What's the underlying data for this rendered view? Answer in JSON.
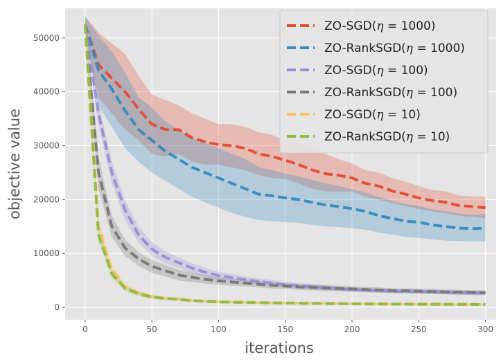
{
  "chart_data": {
    "type": "line",
    "title": "",
    "xlabel": "iterations",
    "ylabel": "objective value",
    "xlim": [
      -15,
      308
    ],
    "ylim": [
      -2300,
      55500
    ],
    "xticks": [
      0,
      50,
      100,
      150,
      200,
      250,
      300
    ],
    "yticks": [
      0,
      10000,
      20000,
      30000,
      40000,
      50000
    ],
    "grid": true,
    "legend_position": "top-right",
    "x": [
      0,
      10,
      20,
      30,
      40,
      50,
      60,
      70,
      80,
      90,
      100,
      110,
      120,
      130,
      140,
      150,
      160,
      170,
      180,
      190,
      200,
      210,
      220,
      230,
      240,
      250,
      260,
      270,
      280,
      290,
      300
    ],
    "series": [
      {
        "name": "ZO-SGD(η = 1000)",
        "label_main": "ZO-SGD(",
        "label_sym": "η",
        "label_rest": " = 1000)",
        "color": "#E24A33",
        "values": [
          52500,
          45000,
          42500,
          40000,
          36800,
          34000,
          33000,
          33000,
          31500,
          30700,
          30200,
          30000,
          29500,
          28500,
          28000,
          27300,
          26500,
          25500,
          24800,
          24500,
          24000,
          23000,
          22500,
          21600,
          21000,
          20300,
          19800,
          19500,
          18900,
          18700,
          18500
        ],
        "lower": [
          51000,
          39000,
          36000,
          33000,
          31000,
          28500,
          28000,
          28500,
          27000,
          26500,
          26500,
          26000,
          25500,
          24500,
          24000,
          23800,
          23000,
          22000,
          21500,
          21500,
          21500,
          20500,
          20000,
          19300,
          18800,
          18200,
          17800,
          17500,
          17000,
          16800,
          16500
        ],
        "upper": [
          54000,
          51000,
          49000,
          47000,
          43000,
          39500,
          38500,
          37500,
          36000,
          35000,
          34000,
          34000,
          33500,
          32500,
          32000,
          31000,
          30500,
          29500,
          28500,
          27500,
          26700,
          25500,
          25000,
          24000,
          23300,
          22500,
          21800,
          21500,
          20800,
          20600,
          20500
        ]
      },
      {
        "name": "ZO-RankSGD(η = 1000)",
        "label_main": "ZO-RankSGD(",
        "label_sym": "η",
        "label_rest": " = 1000)",
        "color": "#348ABD",
        "values": [
          52500,
          44000,
          40500,
          36500,
          33000,
          31000,
          29000,
          27500,
          26000,
          25000,
          24000,
          23000,
          22000,
          21000,
          20700,
          20300,
          20000,
          19500,
          19000,
          18700,
          18300,
          17800,
          17000,
          16500,
          16000,
          15800,
          15300,
          15000,
          14700,
          14600,
          14700
        ],
        "lower": [
          51000,
          37500,
          33500,
          29500,
          27000,
          25000,
          23500,
          22000,
          20500,
          19500,
          18500,
          17500,
          16800,
          16200,
          16000,
          15800,
          15700,
          15300,
          15000,
          14900,
          14700,
          14400,
          13900,
          13500,
          13100,
          12900,
          12600,
          12400,
          12300,
          12200,
          12300
        ],
        "upper": [
          54000,
          50500,
          47500,
          43500,
          39000,
          37000,
          34500,
          33000,
          31500,
          30500,
          29500,
          28500,
          27500,
          26000,
          25500,
          24800,
          24300,
          23700,
          23000,
          22500,
          21900,
          21300,
          20500,
          19800,
          19200,
          18800,
          18200,
          17800,
          17400,
          17200,
          17300
        ]
      },
      {
        "name": "ZO-SGD(η = 100)",
        "label_main": "ZO-SGD(",
        "label_sym": "η",
        "label_rest": " = 100)",
        "color": "#988ED5",
        "values": [
          52500,
          36000,
          25000,
          18000,
          13500,
          10800,
          9300,
          8300,
          7300,
          6500,
          5900,
          5500,
          5100,
          4800,
          4500,
          4200,
          4000,
          3800,
          3600,
          3450,
          3300,
          3200,
          3100,
          3000,
          2950,
          2900,
          2850,
          2800,
          2750,
          2700,
          2650
        ],
        "lower": [
          51500,
          34000,
          23000,
          16200,
          12000,
          9500,
          8200,
          7300,
          6400,
          5700,
          5200,
          4800,
          4500,
          4200,
          3900,
          3700,
          3500,
          3300,
          3150,
          3000,
          2900,
          2800,
          2700,
          2600,
          2550,
          2500,
          2450,
          2400,
          2350,
          2300,
          2250
        ],
        "upper": [
          53500,
          38000,
          27000,
          19800,
          15000,
          12100,
          10400,
          9300,
          8200,
          7300,
          6600,
          6200,
          5700,
          5400,
          5100,
          4700,
          4500,
          4300,
          4050,
          3900,
          3700,
          3600,
          3500,
          3400,
          3350,
          3300,
          3250,
          3200,
          3150,
          3100,
          3050
        ]
      },
      {
        "name": "ZO-RankSGD(η = 100)",
        "label_main": "ZO-RankSGD(",
        "label_sym": "η",
        "label_rest": " = 100)",
        "color": "#777777",
        "values": [
          52500,
          25000,
          15000,
          11000,
          9000,
          7600,
          6800,
          6000,
          5600,
          5200,
          4900,
          4700,
          4500,
          4300,
          4100,
          3950,
          3800,
          3700,
          3600,
          3500,
          3400,
          3300,
          3200,
          3100,
          3050,
          3000,
          2950,
          2850,
          2800,
          2750,
          2700
        ],
        "lower": [
          51500,
          22000,
          13000,
          9500,
          7700,
          6400,
          5700,
          5000,
          4700,
          4400,
          4200,
          4000,
          3850,
          3700,
          3500,
          3400,
          3250,
          3150,
          3050,
          3000,
          2900,
          2800,
          2700,
          2650,
          2600,
          2550,
          2500,
          2400,
          2350,
          2300,
          2250
        ],
        "upper": [
          53500,
          28000,
          17000,
          12500,
          10300,
          8800,
          7900,
          7000,
          6500,
          6000,
          5600,
          5400,
          5150,
          4900,
          4700,
          4500,
          4350,
          4250,
          4150,
          4000,
          3900,
          3800,
          3700,
          3550,
          3500,
          3450,
          3400,
          3300,
          3250,
          3200,
          3150
        ]
      },
      {
        "name": "ZO-SGD(η = 10)",
        "label_main": "ZO-SGD(",
        "label_sym": "η",
        "label_rest": " = 10)",
        "color": "#FBC15E",
        "values": [
          52500,
          15000,
          7000,
          3800,
          2700,
          2000,
          1700,
          1500,
          1300,
          1150,
          1050,
          1000,
          950,
          900,
          850,
          800,
          780,
          750,
          720,
          700,
          680,
          660,
          640,
          620,
          610,
          600,
          590,
          580,
          570,
          560,
          550
        ],
        "lower": [
          51500,
          13500,
          6200,
          3300,
          2300,
          1700,
          1400,
          1250,
          1100,
          950,
          850,
          800,
          760,
          720,
          680,
          640,
          620,
          600,
          580,
          560,
          540,
          520,
          500,
          490,
          480,
          470,
          460,
          450,
          440,
          430,
          420
        ],
        "upper": [
          53500,
          16500,
          7800,
          4300,
          3100,
          2300,
          2000,
          1750,
          1500,
          1350,
          1250,
          1200,
          1140,
          1080,
          1020,
          960,
          940,
          900,
          860,
          840,
          820,
          800,
          780,
          750,
          740,
          730,
          720,
          710,
          700,
          690,
          680
        ]
      },
      {
        "name": "ZO-RankSGD(η = 10)",
        "label_main": "ZO-RankSGD(",
        "label_sym": "η",
        "label_rest": " = 10)",
        "color": "#8EBA42",
        "values": [
          52500,
          13500,
          6200,
          3500,
          2500,
          1900,
          1650,
          1450,
          1250,
          1100,
          1000,
          950,
          900,
          860,
          820,
          780,
          760,
          730,
          700,
          680,
          660,
          640,
          620,
          600,
          590,
          580,
          570,
          560,
          550,
          540,
          530
        ],
        "lower": [
          51500,
          12200,
          5500,
          3000,
          2100,
          1600,
          1350,
          1200,
          1050,
          900,
          820,
          770,
          730,
          700,
          660,
          630,
          610,
          580,
          560,
          540,
          520,
          500,
          490,
          480,
          470,
          460,
          450,
          440,
          430,
          420,
          410
        ],
        "upper": [
          53500,
          14800,
          6900,
          4000,
          2900,
          2200,
          1950,
          1700,
          1450,
          1300,
          1180,
          1130,
          1070,
          1020,
          980,
          930,
          910,
          880,
          840,
          820,
          800,
          780,
          750,
          720,
          710,
          700,
          690,
          680,
          670,
          660,
          650
        ]
      }
    ]
  }
}
